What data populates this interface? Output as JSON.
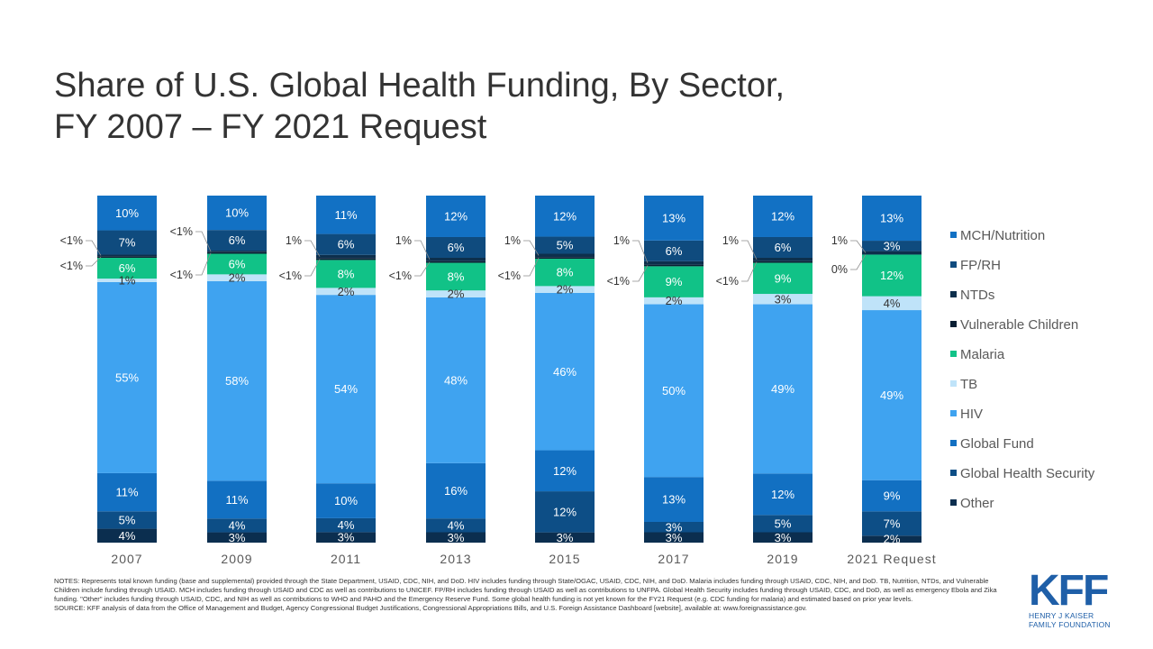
{
  "title_lines": [
    "Share of U.S. Global Health Funding, By Sector,",
    "FY 2007 – FY 2021 Request"
  ],
  "notes": "NOTES: Represents total known funding (base and supplemental) provided through the State Department, USAID, CDC, NIH, and DoD. HIV includes funding through State/OGAC, USAID, CDC, NIH, and DoD. Malaria includes funding through USAID, CDC, NIH, and DoD. TB, Nutrition, NTDs, and Vulnerable Children include funding through USAID. MCH includes funding through USAID and CDC as well as contributions to UNICEF. FP/RH includes funding through USAID as well as contributions to UNFPA. Global Health Security includes funding through USAID, CDC, and DoD, as well as emergency Ebola and Zika funding. \"Other\" includes funding through USAID, CDC, and NIH as well as contributions to WHO and PAHO and the Emergency Reserve Fund. Some global health funding is not yet known for the FY21 Request (e.g. CDC funding for malaria) and estimated based on prior year levels.",
  "source": "SOURCE: KFF analysis of data from the Office of Management and Budget, Agency Congressional Budget Justifications, Congressional Appropriations Bills, and U.S. Foreign Assistance Dashboard [website], available at: www.foreignassistance.gov.",
  "logo": {
    "mark": "KFF",
    "line1": "HENRY J KAISER",
    "line2": "FAMILY FOUNDATION"
  },
  "colors": {
    "Other": "#0b2e4f",
    "Global Health Security": "#0d4e86",
    "Global Fund": "#1270c2",
    "HIV": "#3fa3f0",
    "TB": "#bfe3f9",
    "Malaria": "#11c287",
    "Vulnerable Children": "#0a1f33",
    "NTDs": "#0d2f4c",
    "FP/RH": "#0f4b7e",
    "MCH/Nutrition": "#1271c4"
  },
  "chart_data": {
    "type": "bar",
    "stacked": true,
    "categories": [
      "2007",
      "2009",
      "2011",
      "2013",
      "2015",
      "2017",
      "2019",
      "2021 Request"
    ],
    "series": [
      {
        "name": "Other",
        "values": [
          4,
          3,
          3,
          3,
          3,
          3,
          3,
          2
        ],
        "labels": [
          "4%",
          "3%",
          "3%",
          "3%",
          "3%",
          "3%",
          "3%",
          "2%"
        ]
      },
      {
        "name": "Global Health Security",
        "values": [
          5,
          4,
          4,
          4,
          12,
          3,
          5,
          7
        ],
        "labels": [
          "5%",
          "4%",
          "4%",
          "4%",
          "12%",
          "3%",
          "5%",
          "7%"
        ]
      },
      {
        "name": "Global Fund",
        "values": [
          11,
          11,
          10,
          16,
          12,
          13,
          12,
          9
        ],
        "labels": [
          "11%",
          "11%",
          "10%",
          "16%",
          "12%",
          "13%",
          "12%",
          "9%"
        ]
      },
      {
        "name": "HIV",
        "values": [
          55,
          58,
          54,
          48,
          46,
          50,
          49,
          49
        ],
        "labels": [
          "55%",
          "58%",
          "54%",
          "48%",
          "46%",
          "50%",
          "49%",
          "49%"
        ]
      },
      {
        "name": "TB",
        "values": [
          1,
          2,
          2,
          2,
          2,
          2,
          3,
          4
        ],
        "labels": [
          "1%",
          "2%",
          "2%",
          "2%",
          "2%",
          "2%",
          "3%",
          "4%"
        ]
      },
      {
        "name": "Malaria",
        "values": [
          6,
          6,
          8,
          8,
          8,
          9,
          9,
          12
        ],
        "labels": [
          "6%",
          "6%",
          "8%",
          "8%",
          "8%",
          "9%",
          "9%",
          "12%"
        ]
      },
      {
        "name": "Vulnerable Children",
        "values": [
          0.4,
          0.4,
          0.4,
          0.4,
          0.4,
          0.4,
          0.4,
          0
        ],
        "labels": [
          "<1%",
          "<1%",
          "<1%",
          "<1%",
          "<1%",
          "<1%",
          "<1%",
          "0%"
        ]
      },
      {
        "name": "NTDs",
        "values": [
          0.4,
          0.4,
          1,
          1,
          1,
          1,
          1,
          1
        ],
        "labels": [
          "<1%",
          "<1%",
          "1%",
          "1%",
          "1%",
          "1%",
          "1%",
          "1%"
        ]
      },
      {
        "name": "FP/RH",
        "values": [
          7,
          6,
          6,
          6,
          5,
          6,
          6,
          3
        ],
        "labels": [
          "7%",
          "6%",
          "6%",
          "6%",
          "5%",
          "6%",
          "6%",
          "3%"
        ]
      },
      {
        "name": "MCH/Nutrition",
        "values": [
          10,
          10,
          11,
          12,
          12,
          13,
          12,
          13
        ],
        "labels": [
          "10%",
          "10%",
          "11%",
          "12%",
          "12%",
          "13%",
          "12%",
          "13%"
        ]
      }
    ],
    "legend": [
      "MCH/Nutrition",
      "FP/RH",
      "NTDs",
      "Vulnerable Children",
      "Malaria",
      "TB",
      "HIV",
      "Global Fund",
      "Global Health Security",
      "Other"
    ],
    "legend_position": "right",
    "ylim": [
      0,
      100
    ],
    "grid": false
  }
}
